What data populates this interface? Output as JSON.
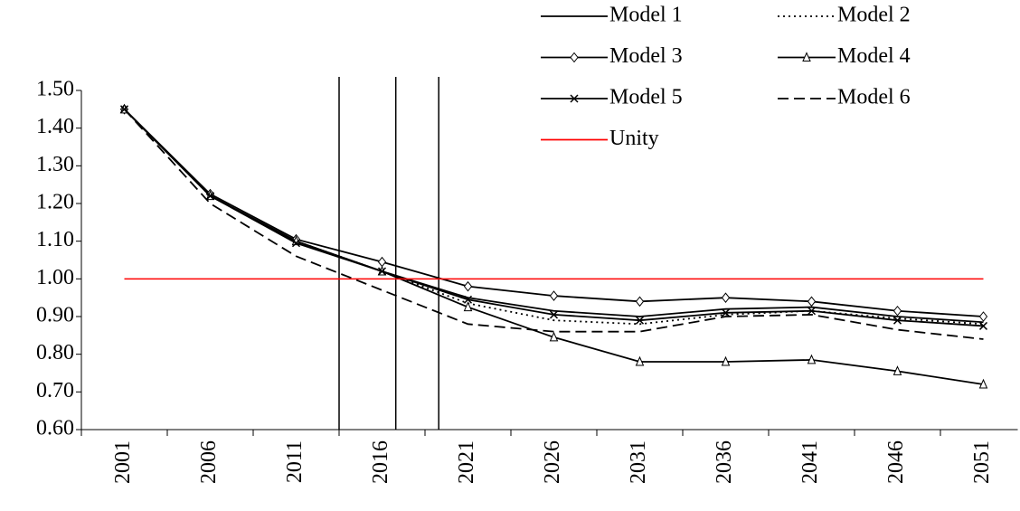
{
  "chart_data": {
    "type": "line",
    "x": [
      2001,
      2006,
      2011,
      2016,
      2021,
      2026,
      2031,
      2036,
      2041,
      2046,
      2051
    ],
    "xlim": [
      1998.5,
      2053
    ],
    "xticks": [
      2001,
      2006,
      2011,
      2016,
      2021,
      2026,
      2031,
      2036,
      2041,
      2046,
      2051
    ],
    "ylim": [
      0.6,
      1.5
    ],
    "yticks": [
      {
        "value": 0.6,
        "label": "0.60"
      },
      {
        "value": 0.7,
        "label": "0.70"
      },
      {
        "value": 0.8,
        "label": "0.80"
      },
      {
        "value": 0.9,
        "label": "0.90"
      },
      {
        "value": 1.0,
        "label": "1.00"
      },
      {
        "value": 1.1,
        "label": "1.10"
      },
      {
        "value": 1.2,
        "label": "1.20"
      },
      {
        "value": 1.3,
        "label": "1.30"
      },
      {
        "value": 1.4,
        "label": "1.40"
      },
      {
        "value": 1.5,
        "label": "1.50"
      }
    ],
    "vertical_lines": [
      2013.5,
      2016.8,
      2019.3
    ],
    "legend": "top-right",
    "series": [
      {
        "name": "Model 1",
        "color": "#000000",
        "dash": "solid",
        "marker": "none",
        "values": [
          1.45,
          1.22,
          1.1,
          1.02,
          0.95,
          0.915,
          0.9,
          0.92,
          0.925,
          0.9,
          0.885
        ]
      },
      {
        "name": "Model 2",
        "color": "#000000",
        "dash": "dotted",
        "marker": "none",
        "values": [
          1.45,
          1.22,
          1.1,
          1.02,
          0.935,
          0.89,
          0.88,
          0.905,
          0.915,
          0.895,
          0.88
        ]
      },
      {
        "name": "Model 3",
        "color": "#000000",
        "dash": "solid",
        "marker": "diamond",
        "values": [
          1.45,
          1.225,
          1.105,
          1.045,
          0.98,
          0.955,
          0.94,
          0.95,
          0.94,
          0.915,
          0.9
        ]
      },
      {
        "name": "Model 4",
        "color": "#000000",
        "dash": "solid",
        "marker": "triangle",
        "values": [
          1.45,
          1.22,
          1.1,
          1.02,
          0.925,
          0.845,
          0.78,
          0.78,
          0.785,
          0.755,
          0.72
        ]
      },
      {
        "name": "Model 5",
        "color": "#000000",
        "dash": "solid",
        "marker": "x",
        "values": [
          1.45,
          1.22,
          1.095,
          1.02,
          0.945,
          0.905,
          0.89,
          0.91,
          0.915,
          0.89,
          0.875
        ]
      },
      {
        "name": "Model 6",
        "color": "#000000",
        "dash": "dashed",
        "marker": "none",
        "values": [
          1.45,
          1.2,
          1.06,
          0.97,
          0.88,
          0.86,
          0.86,
          0.9,
          0.905,
          0.865,
          0.84
        ]
      },
      {
        "name": "Unity",
        "color": "#ff0000",
        "dash": "solid",
        "marker": "none",
        "values": [
          1.0,
          1.0,
          1.0,
          1.0,
          1.0,
          1.0,
          1.0,
          1.0,
          1.0,
          1.0,
          1.0
        ]
      }
    ]
  }
}
